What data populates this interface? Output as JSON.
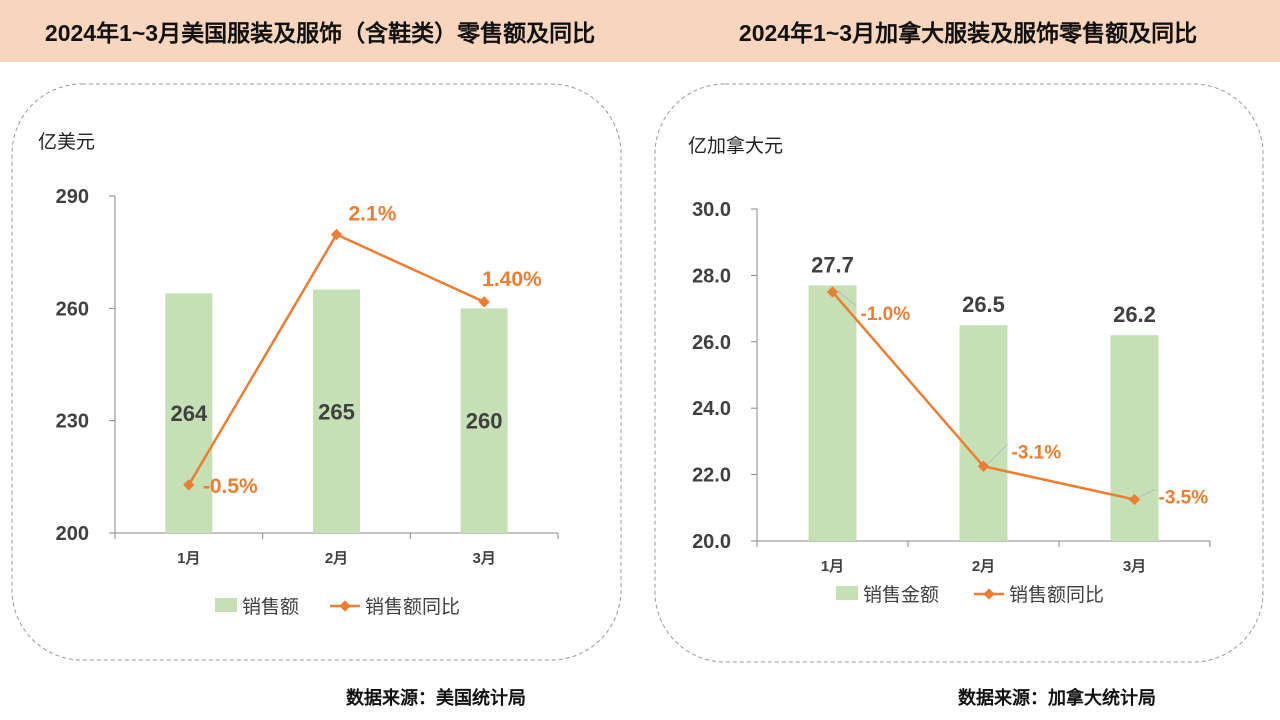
{
  "titles": {
    "left": "2024年1~3月美国服装及服饰（含鞋类）零售额及同比",
    "right": "2024年1~3月加拿大服装及服饰零售额及同比"
  },
  "sources": {
    "left": "数据来源：美国统计局",
    "right": "数据来源：加拿大统计局"
  },
  "colors": {
    "header_bg": "#f8d5bd",
    "bar": "#c5e0b4",
    "line": "#ed7d31",
    "text": "#404040"
  },
  "chart_data": [
    {
      "type": "bar+line",
      "unit_label": "亿美元",
      "categories": [
        "1月",
        "2月",
        "3月"
      ],
      "ylim": [
        200,
        290
      ],
      "yticks": [
        "200",
        "230",
        "260",
        "290"
      ],
      "y2lim": [
        -1.0,
        2.5
      ],
      "series": [
        {
          "name": "销售额",
          "type": "bar",
          "values": [
            264,
            265,
            260
          ],
          "labels": [
            "264",
            "265",
            "260"
          ]
        },
        {
          "name": "销售额同比",
          "type": "line",
          "values": [
            -0.5,
            2.1,
            1.4
          ],
          "labels": [
            "-0.5%",
            "2.1%",
            "1.40%"
          ]
        }
      ],
      "legend": "bottom",
      "grid": false
    },
    {
      "type": "bar+line",
      "unit_label": "亿加拿大元",
      "categories": [
        "1月",
        "2月",
        "3月"
      ],
      "ylim": [
        20,
        30
      ],
      "yticks": [
        "20.0",
        "22.0",
        "24.0",
        "26.0",
        "28.0",
        "30.0"
      ],
      "y2lim": [
        -4.0,
        0.0
      ],
      "series": [
        {
          "name": "销售金额",
          "type": "bar",
          "values": [
            27.7,
            26.5,
            26.2
          ],
          "labels": [
            "27.7",
            "26.5",
            "26.2"
          ]
        },
        {
          "name": "销售额同比",
          "type": "line",
          "values": [
            -1.0,
            -3.1,
            -3.5
          ],
          "labels": [
            "-1.0%",
            "-3.1%",
            "-3.5%"
          ]
        }
      ],
      "legend": "bottom",
      "grid": false
    }
  ]
}
